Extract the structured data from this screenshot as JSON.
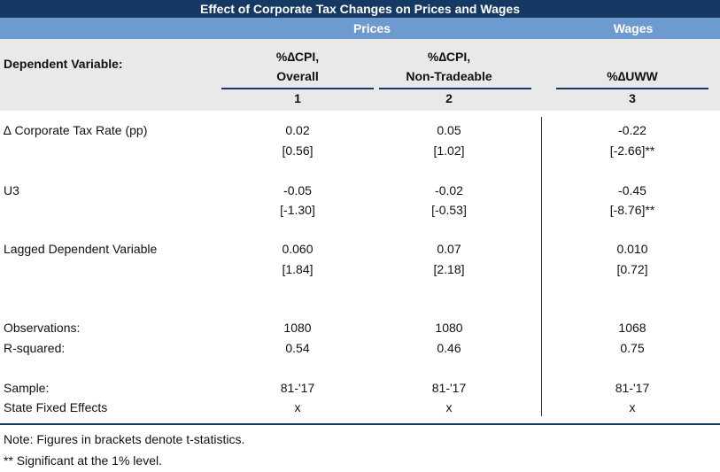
{
  "title": "Effect of Corporate Tax Changes on Prices and Wages",
  "groups": {
    "prices": "Prices",
    "wages": "Wages"
  },
  "dependent_label": "Dependent Variable:",
  "columns": [
    {
      "line1": "%∆CPI,",
      "line2": "Overall",
      "number": "1"
    },
    {
      "line1": "%∆CPI,",
      "line2": "Non-Tradeable",
      "number": "2"
    },
    {
      "line1": "",
      "line2": "%∆UWW",
      "number": "3"
    }
  ],
  "rows": [
    {
      "label": "∆ Corporate Tax Rate (pp)",
      "coef": [
        "0.02",
        "0.05",
        "-0.22"
      ],
      "tstat": [
        "[0.56]",
        "[1.02]",
        "[-2.66]**"
      ]
    },
    {
      "label": "U3",
      "coef": [
        "-0.05",
        "-0.02",
        "-0.45"
      ],
      "tstat": [
        "[-1.30]",
        "[-0.53]",
        "[-8.76]**"
      ]
    },
    {
      "label": "Lagged Dependent Variable",
      "coef": [
        "0.060",
        "0.07",
        "0.010"
      ],
      "tstat": [
        "[1.84]",
        "[2.18]",
        "[0.72]"
      ]
    }
  ],
  "stats": [
    {
      "label": "Observations:",
      "values": [
        "1080",
        "1080",
        "1068"
      ]
    },
    {
      "label": "R-squared:",
      "values": [
        "0.54",
        "0.46",
        "0.75"
      ]
    },
    {
      "label": "Sample:",
      "values": [
        "81-'17",
        "81-'17",
        "81-'17"
      ]
    },
    {
      "label": "State Fixed Effects",
      "values": [
        "x",
        "x",
        "x"
      ]
    }
  ],
  "notes": [
    "Note: Figures in brackets denote t-statistics.",
    "** Significant at the 1% level."
  ],
  "colors": {
    "title_bg": "#163963",
    "group_bg": "#6e9bcf",
    "header_bg": "#e9e9e9"
  }
}
